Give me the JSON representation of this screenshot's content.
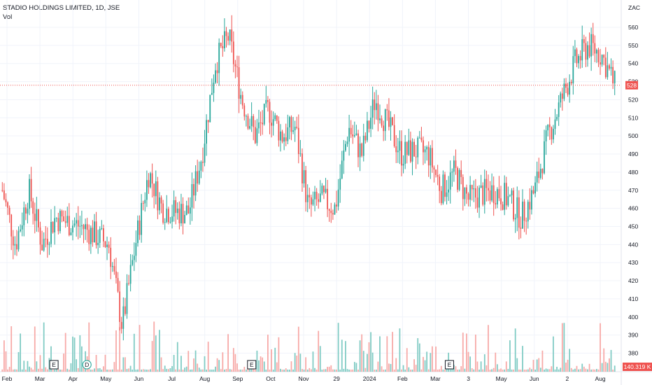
{
  "header": {
    "title": "STADIO HOLDINGS LIMITED, 1D, JSE",
    "volume_label": "Vol"
  },
  "currency": "ZAC",
  "colors": {
    "up": "#26a69a",
    "down": "#ef5350",
    "up_volume": "#80cbc4",
    "down_volume": "#f7a9a7",
    "grid": "#f0f3fa",
    "last_price_line": "#ef5350",
    "volume_tag": "#ef5350",
    "price_tag": "#ef5350"
  },
  "chart_data": {
    "type": "candlestick",
    "title": "STADIO HOLDINGS LIMITED, 1D, JSE",
    "y_axis": {
      "unit": "ZAC",
      "range": [
        370,
        565
      ],
      "ticks": [
        380,
        390,
        400,
        410,
        420,
        430,
        440,
        450,
        460,
        470,
        480,
        490,
        500,
        510,
        520,
        530,
        540,
        550,
        560
      ]
    },
    "x_axis": {
      "ticks": [
        "Feb",
        "Mar",
        "Apr",
        "May",
        "Jun",
        "Jul",
        "Aug",
        "Sep",
        "Oct",
        "Nov",
        "29",
        "2024",
        "Feb",
        "Mar",
        "3",
        "May",
        "Jun",
        "2",
        "Aug"
      ]
    },
    "last_price": 528,
    "last_volume_label": "140.319 K",
    "events": [
      {
        "type": "E",
        "date": "Mar"
      },
      {
        "type": "D",
        "date": "Apr"
      },
      {
        "type": "E",
        "date": "Sep"
      },
      {
        "type": "E",
        "date": "Mar"
      },
      {
        "type": "D",
        "date": "Apr"
      }
    ],
    "price_path": [
      {
        "x": "Feb",
        "close": 470
      },
      {
        "x": "Feb",
        "close": 440
      },
      {
        "x": "Mar",
        "close": 470
      },
      {
        "x": "Mar",
        "close": 440
      },
      {
        "x": "Mar",
        "close": 455
      },
      {
        "x": "Apr",
        "close": 452
      },
      {
        "x": "Apr",
        "close": 450
      },
      {
        "x": "May",
        "close": 445
      },
      {
        "x": "May",
        "close": 440
      },
      {
        "x": "Jun",
        "close": 395
      },
      {
        "x": "Jun",
        "close": 440
      },
      {
        "x": "Jun",
        "close": 480
      },
      {
        "x": "Jul",
        "close": 460
      },
      {
        "x": "Jul",
        "close": 458
      },
      {
        "x": "Aug",
        "close": 458
      },
      {
        "x": "Aug",
        "close": 490
      },
      {
        "x": "Aug",
        "close": 540
      },
      {
        "x": "Sep",
        "close": 555
      },
      {
        "x": "Sep",
        "close": 520
      },
      {
        "x": "Sep",
        "close": 500
      },
      {
        "x": "Oct",
        "close": 515
      },
      {
        "x": "Oct",
        "close": 500
      },
      {
        "x": "Oct",
        "close": 505
      },
      {
        "x": "Nov",
        "close": 460
      },
      {
        "x": "Nov",
        "close": 465
      },
      {
        "x": "Nov",
        "close": 460
      },
      {
        "x": "29",
        "close": 505
      },
      {
        "x": "29",
        "close": 490
      },
      {
        "x": "2024",
        "close": 520
      },
      {
        "x": "2024",
        "close": 505
      },
      {
        "x": "Feb",
        "close": 490
      },
      {
        "x": "Feb",
        "close": 492
      },
      {
        "x": "Mar",
        "close": 490
      },
      {
        "x": "Mar",
        "close": 470
      },
      {
        "x": "Mar",
        "close": 480
      },
      {
        "x": "3",
        "close": 465
      },
      {
        "x": "3",
        "close": 468
      },
      {
        "x": "May",
        "close": 470
      },
      {
        "x": "May",
        "close": 465
      },
      {
        "x": "Jun",
        "close": 455
      },
      {
        "x": "Jun",
        "close": 470
      },
      {
        "x": "Jun",
        "close": 500
      },
      {
        "x": "2",
        "close": 520
      },
      {
        "x": "2",
        "close": 540
      },
      {
        "x": "Aug",
        "close": 550
      },
      {
        "x": "Aug",
        "close": 545
      },
      {
        "x": "Aug",
        "close": 528
      }
    ]
  }
}
